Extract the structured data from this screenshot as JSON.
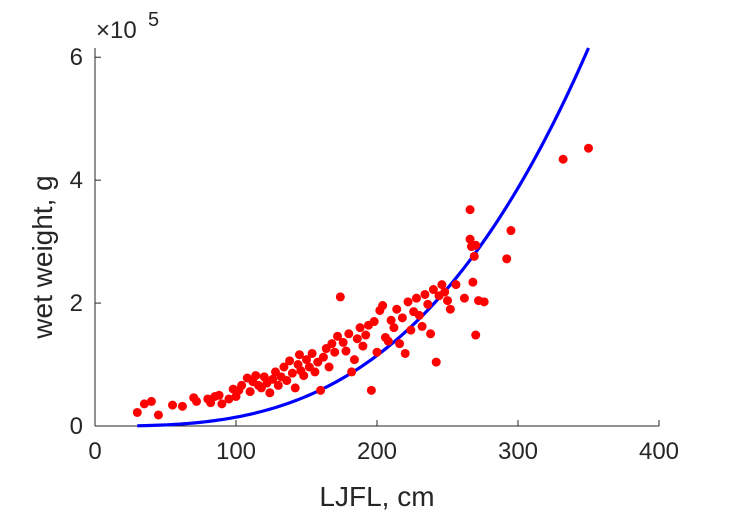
{
  "chart_data": {
    "type": "scatter",
    "title": "",
    "xlabel": "LJFL, cm",
    "ylabel": "wet weight, g",
    "xlim": [
      0,
      400
    ],
    "ylim": [
      0,
      6.15
    ],
    "x_ticks": [
      0,
      100,
      200,
      300,
      400
    ],
    "x_tick_labels": [
      "0",
      "100",
      "200",
      "300",
      "400"
    ],
    "y_ticks": [
      0,
      2,
      4,
      6
    ],
    "y_tick_labels": [
      "0",
      "2",
      "4",
      "6"
    ],
    "y_exponent_label": {
      "base": "×10",
      "power": "5"
    },
    "grid": false,
    "legend": "none",
    "colors": {
      "points": "#ff0000",
      "fit_curve": "#0000ff",
      "axes": "#262626"
    },
    "series": [
      {
        "type": "scatter",
        "points": [
          [
            30,
            0.22
          ],
          [
            35,
            0.36
          ],
          [
            40,
            0.4
          ],
          [
            45,
            0.18
          ],
          [
            55,
            0.34
          ],
          [
            62,
            0.32
          ],
          [
            70,
            0.46
          ],
          [
            72,
            0.4
          ],
          [
            80,
            0.44
          ],
          [
            82,
            0.38
          ],
          [
            85,
            0.48
          ],
          [
            88,
            0.5
          ],
          [
            90,
            0.36
          ],
          [
            95,
            0.44
          ],
          [
            98,
            0.6
          ],
          [
            100,
            0.48
          ],
          [
            102,
            0.58
          ],
          [
            104,
            0.66
          ],
          [
            108,
            0.78
          ],
          [
            110,
            0.56
          ],
          [
            112,
            0.72
          ],
          [
            114,
            0.82
          ],
          [
            116,
            0.66
          ],
          [
            118,
            0.62
          ],
          [
            120,
            0.8
          ],
          [
            122,
            0.7
          ],
          [
            124,
            0.54
          ],
          [
            126,
            0.76
          ],
          [
            128,
            0.88
          ],
          [
            130,
            0.66
          ],
          [
            132,
            0.8
          ],
          [
            134,
            0.96
          ],
          [
            136,
            0.74
          ],
          [
            138,
            1.06
          ],
          [
            140,
            0.86
          ],
          [
            142,
            0.62
          ],
          [
            144,
            1.0
          ],
          [
            145,
            1.16
          ],
          [
            146,
            0.9
          ],
          [
            148,
            0.82
          ],
          [
            150,
            1.08
          ],
          [
            152,
            0.96
          ],
          [
            154,
            1.18
          ],
          [
            156,
            0.88
          ],
          [
            158,
            1.04
          ],
          [
            160,
            0.58
          ],
          [
            162,
            1.12
          ],
          [
            164,
            1.26
          ],
          [
            166,
            0.96
          ],
          [
            168,
            1.34
          ],
          [
            170,
            1.2
          ],
          [
            172,
            1.46
          ],
          [
            174,
            2.1
          ],
          [
            176,
            1.36
          ],
          [
            178,
            1.22
          ],
          [
            180,
            1.5
          ],
          [
            182,
            0.88
          ],
          [
            184,
            1.08
          ],
          [
            186,
            1.42
          ],
          [
            188,
            1.6
          ],
          [
            190,
            1.3
          ],
          [
            192,
            1.48
          ],
          [
            194,
            1.64
          ],
          [
            196,
            0.58
          ],
          [
            198,
            1.7
          ],
          [
            200,
            1.2
          ],
          [
            202,
            1.88
          ],
          [
            204,
            1.96
          ],
          [
            206,
            1.44
          ],
          [
            208,
            1.38
          ],
          [
            210,
            1.72
          ],
          [
            212,
            1.6
          ],
          [
            214,
            1.9
          ],
          [
            216,
            1.34
          ],
          [
            218,
            1.76
          ],
          [
            220,
            1.18
          ],
          [
            222,
            2.02
          ],
          [
            224,
            1.56
          ],
          [
            226,
            1.86
          ],
          [
            228,
            2.08
          ],
          [
            230,
            1.8
          ],
          [
            232,
            1.62
          ],
          [
            234,
            2.14
          ],
          [
            236,
            1.98
          ],
          [
            238,
            1.5
          ],
          [
            240,
            2.22
          ],
          [
            242,
            1.04
          ],
          [
            244,
            2.12
          ],
          [
            246,
            2.3
          ],
          [
            248,
            2.18
          ],
          [
            250,
            2.04
          ],
          [
            252,
            1.9
          ],
          [
            256,
            2.3
          ],
          [
            262,
            2.08
          ],
          [
            266,
            3.52
          ],
          [
            266,
            3.04
          ],
          [
            267,
            2.92
          ],
          [
            268,
            2.34
          ],
          [
            269,
            2.76
          ],
          [
            270,
            1.48
          ],
          [
            270,
            2.94
          ],
          [
            272,
            2.04
          ],
          [
            276,
            2.02
          ],
          [
            292,
            2.72
          ],
          [
            295,
            3.18
          ],
          [
            332,
            4.34
          ],
          [
            350,
            4.52
          ]
        ]
      },
      {
        "type": "line",
        "curve": "power fit: y = 6.15 * (x / 350)^3",
        "x_range": [
          30,
          350
        ],
        "a": 6.15,
        "x_ref": 350,
        "exponent": 3
      }
    ]
  }
}
